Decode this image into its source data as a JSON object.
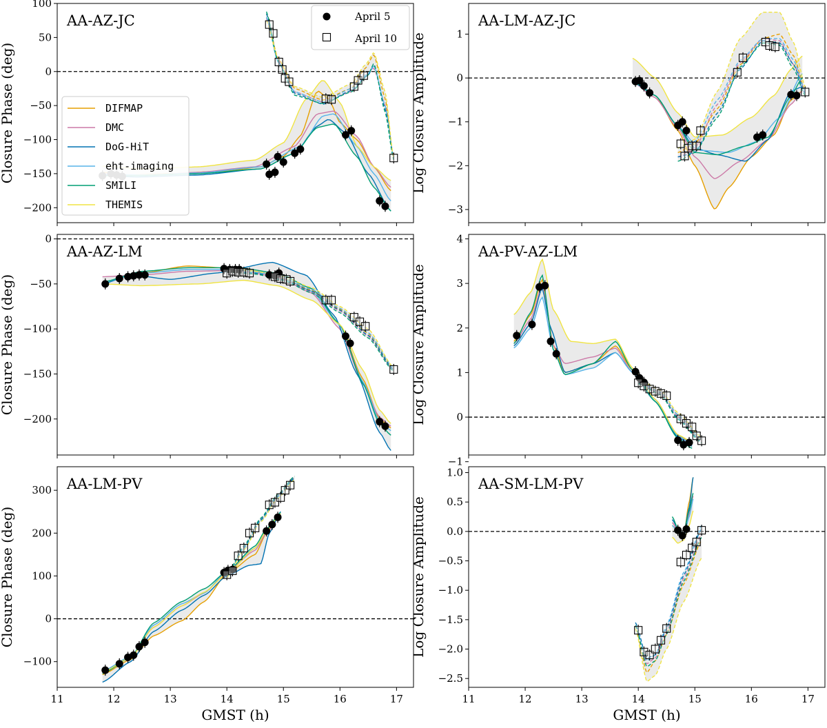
{
  "model_colors": {
    "DIFMAP": "#e69f00",
    "DMC": "#cc79a7",
    "DoG-HiT": "#0072b2",
    "eht-imaging": "#56b4e9",
    "SMILI": "#009e73",
    "THEMIS": "#f0e442"
  },
  "legend": {
    "models": [
      "DIFMAP",
      "DMC",
      "DoG-HiT",
      "eht-imaging",
      "SMILI",
      "THEMIS"
    ],
    "days": [
      "April 5",
      "April 10"
    ]
  },
  "chart_data": [
    {
      "id": "p0",
      "type": "line",
      "title": "AA-AZ-JC",
      "xlabel": "",
      "ylabel": "Closure Phase (deg)",
      "xlim": [
        11,
        17.3
      ],
      "ylim": [
        -222,
        100
      ],
      "yticks": [
        100,
        50,
        0,
        -50,
        -100,
        -150,
        -200
      ],
      "xticks": [
        11,
        12,
        13,
        14,
        15,
        16,
        17
      ],
      "legend": "top-right + left",
      "series": [
        {
          "name": "April 5",
          "marker": "circle",
          "x": [
            11.8,
            11.95,
            12.05,
            12.15,
            14.7,
            14.75,
            14.85,
            14.9,
            15.0,
            15.2,
            15.3,
            16.1,
            16.2,
            16.7,
            16.8
          ],
          "y": [
            -153,
            -150,
            -152,
            -154,
            -136,
            -151,
            -148,
            -125,
            -133,
            -120,
            -114,
            -93,
            -87,
            -190,
            -198
          ]
        },
        {
          "name": "April 10",
          "marker": "square",
          "x": [
            14.75,
            14.82,
            14.92,
            14.98,
            15.03,
            15.1,
            15.75,
            15.85,
            16.25,
            16.32,
            16.42,
            16.95
          ],
          "y": [
            69,
            56,
            14,
            3,
            -10,
            -15,
            -40,
            -41,
            -22,
            -13,
            -6,
            -127
          ]
        }
      ]
    },
    {
      "id": "p1",
      "type": "line",
      "title": "AA-LM-AZ-JC",
      "xlabel": "",
      "ylabel": "Log Closure Amplitude",
      "xlim": [
        11,
        17.3
      ],
      "ylim": [
        -3.3,
        1.7
      ],
      "yticks": [
        1,
        0,
        -1,
        -2,
        -3
      ],
      "xticks": [
        11,
        12,
        13,
        14,
        15,
        16,
        17
      ],
      "series": [
        {
          "name": "April 5",
          "marker": "circle",
          "x": [
            13.95,
            14.02,
            14.1,
            14.2,
            14.7,
            14.78,
            14.85,
            16.1,
            16.2,
            16.7,
            16.8
          ],
          "y": [
            -0.08,
            -0.06,
            -0.18,
            -0.34,
            -1.08,
            -1.0,
            -1.2,
            -1.35,
            -1.3,
            -0.38,
            -0.4
          ]
        },
        {
          "name": "April 10",
          "marker": "square",
          "x": [
            14.75,
            14.82,
            14.88,
            14.95,
            15.03,
            15.1,
            15.75,
            15.85,
            16.25,
            16.32,
            16.42,
            16.95
          ],
          "y": [
            -1.5,
            -1.78,
            -1.6,
            -1.55,
            -1.55,
            -1.2,
            0.13,
            0.46,
            0.82,
            0.74,
            0.71,
            -0.32
          ]
        }
      ]
    },
    {
      "id": "p2",
      "type": "line",
      "title": "AA-AZ-LM",
      "xlabel": "",
      "ylabel": "Closure Phase (deg)",
      "xlim": [
        11,
        17.3
      ],
      "ylim": [
        -240,
        5
      ],
      "yticks": [
        0,
        -50,
        -100,
        -150,
        -200
      ],
      "xticks": [
        11,
        12,
        13,
        14,
        15,
        16,
        17
      ],
      "series": [
        {
          "name": "April 5",
          "marker": "circle",
          "x": [
            11.85,
            12.1,
            12.25,
            12.35,
            12.45,
            12.55,
            13.95,
            14.05,
            14.15,
            14.22,
            14.75,
            14.85,
            14.92,
            16.1,
            16.18,
            16.7,
            16.8
          ],
          "y": [
            -50,
            -44,
            -42,
            -41,
            -40,
            -40,
            -33,
            -34,
            -34,
            -34,
            -40,
            -41,
            -38,
            -108,
            -116,
            -203,
            -208
          ]
        },
        {
          "name": "April 10",
          "marker": "square",
          "x": [
            14.0,
            14.1,
            14.2,
            14.3,
            14.4,
            14.85,
            14.95,
            15.05,
            15.12,
            15.75,
            15.85,
            16.25,
            16.35,
            16.45,
            16.95
          ],
          "y": [
            -38,
            -36,
            -37,
            -37,
            -38,
            -42,
            -44,
            -45,
            -47,
            -68,
            -68,
            -87,
            -92,
            -97,
            -145
          ]
        }
      ]
    },
    {
      "id": "p3",
      "type": "line",
      "title": "AA-PV-AZ-LM",
      "xlabel": "",
      "ylabel": "Log Closure Amplitude",
      "xlim": [
        11,
        17.3
      ],
      "ylim": [
        -0.85,
        4.1
      ],
      "yticks": [
        4,
        3,
        2,
        1,
        0,
        -1
      ],
      "xticks": [
        11,
        12,
        13,
        14,
        15,
        16,
        17
      ],
      "series": [
        {
          "name": "April 5",
          "marker": "circle",
          "x": [
            11.85,
            12.12,
            12.25,
            12.35,
            12.45,
            12.55,
            13.95,
            14.02,
            14.1,
            14.7,
            14.8,
            14.9
          ],
          "y": [
            1.83,
            2.08,
            2.92,
            2.95,
            1.7,
            1.42,
            1.02,
            0.88,
            0.78,
            -0.52,
            -0.62,
            -0.57
          ]
        },
        {
          "name": "April 10",
          "marker": "square",
          "x": [
            14.0,
            14.1,
            14.2,
            14.3,
            14.4,
            14.5,
            14.75,
            14.85,
            14.95,
            15.03,
            15.12
          ],
          "y": [
            0.77,
            0.7,
            0.63,
            0.58,
            0.53,
            0.48,
            -0.04,
            -0.14,
            -0.22,
            -0.42,
            -0.53
          ]
        }
      ]
    },
    {
      "id": "p4",
      "type": "line",
      "title": "AA-LM-PV",
      "xlabel": "GMST (h)",
      "ylabel": "Closure Phase (deg)",
      "xlim": [
        11,
        17.3
      ],
      "ylim": [
        -160,
        355
      ],
      "yticks": [
        300,
        200,
        100,
        0,
        -100
      ],
      "xticks": [
        11,
        12,
        13,
        14,
        15,
        16,
        17
      ],
      "series": [
        {
          "name": "April 5",
          "marker": "circle",
          "x": [
            11.85,
            12.1,
            12.25,
            12.35,
            12.45,
            12.55,
            13.95,
            14.02,
            14.1,
            14.7,
            14.8,
            14.9
          ],
          "y": [
            -120,
            -105,
            -90,
            -85,
            -65,
            -55,
            108,
            113,
            115,
            205,
            220,
            237
          ]
        },
        {
          "name": "April 10",
          "marker": "square",
          "x": [
            14.0,
            14.1,
            14.2,
            14.3,
            14.4,
            14.5,
            14.75,
            14.85,
            14.95,
            15.03,
            15.12
          ],
          "y": [
            103,
            112,
            147,
            165,
            200,
            212,
            266,
            272,
            283,
            300,
            312
          ]
        }
      ]
    },
    {
      "id": "p5",
      "type": "line",
      "title": "AA-SM-LM-PV",
      "xlabel": "GMST (h)",
      "ylabel": "Log Closure Amplitude",
      "xlim": [
        11,
        17.3
      ],
      "ylim": [
        -2.65,
        1.1
      ],
      "yticks": [
        1.0,
        0.5,
        0.0,
        -0.5,
        -1.0,
        -1.5,
        -2.0,
        -2.5
      ],
      "xticks": [
        11,
        12,
        13,
        14,
        15,
        16,
        17
      ],
      "series": [
        {
          "name": "April 5",
          "marker": "circle",
          "x": [
            14.7,
            14.78,
            14.85
          ],
          "y": [
            0.02,
            -0.07,
            0.04
          ]
        },
        {
          "name": "April 10",
          "marker": "square",
          "x": [
            14.0,
            14.1,
            14.2,
            14.3,
            14.4,
            14.5,
            14.75,
            14.85,
            14.95,
            15.03,
            15.12
          ],
          "y": [
            -1.68,
            -2.05,
            -2.1,
            -2.0,
            -1.85,
            -1.65,
            -0.52,
            -0.4,
            -0.28,
            -0.18,
            0.02
          ]
        }
      ]
    }
  ]
}
